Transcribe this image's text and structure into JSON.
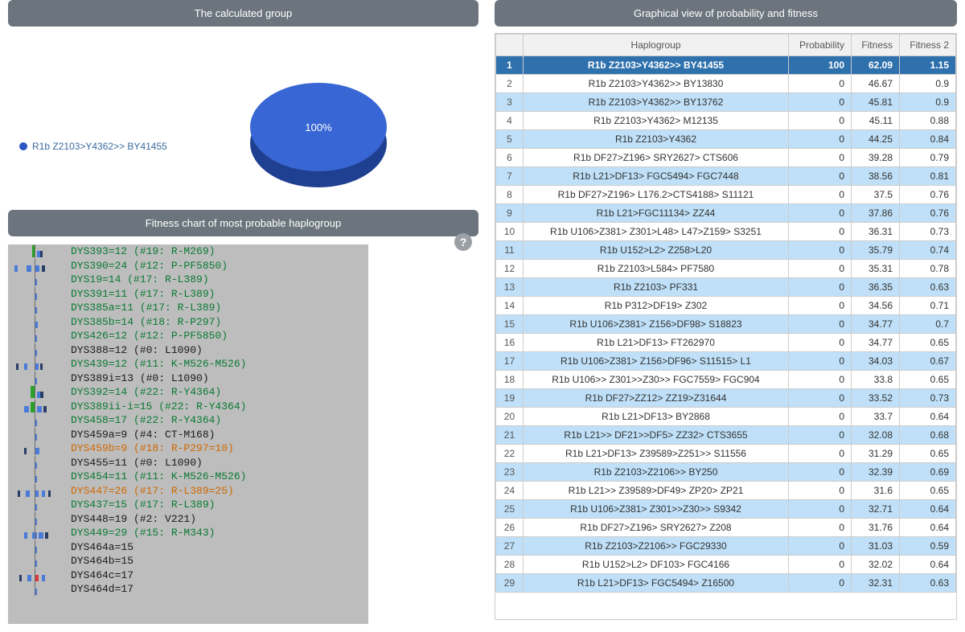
{
  "panels": {
    "calculated": "The calculated group",
    "graphical": "Graphical view of probability and fitness",
    "fitness": "Fitness chart of most probable haplogroup"
  },
  "pie": {
    "label": "100%",
    "legend": "R1b Z2103>Y4362>> BY41455",
    "fill": "#2b57c5",
    "top_fill": "#3866d4"
  },
  "help": "?",
  "table": {
    "headers": {
      "hap": "Haplogroup",
      "prob": "Probability",
      "fit": "Fitness",
      "fit2": "Fitness 2"
    },
    "rows": [
      {
        "idx": 1,
        "hap": "R1b Z2103>Y4362>> BY41455",
        "p": "100",
        "f": "62.09",
        "f2": "1.15",
        "sel": true
      },
      {
        "idx": 2,
        "hap": "R1b Z2103>Y4362>> BY13830",
        "p": "0",
        "f": "46.67",
        "f2": "0.9"
      },
      {
        "idx": 3,
        "hap": "R1b Z2103>Y4362>> BY13762",
        "p": "0",
        "f": "45.81",
        "f2": "0.9"
      },
      {
        "idx": 4,
        "hap": "R1b Z2103>Y4362> M12135",
        "p": "0",
        "f": "45.11",
        "f2": "0.88"
      },
      {
        "idx": 5,
        "hap": "R1b Z2103>Y4362",
        "p": "0",
        "f": "44.25",
        "f2": "0.84"
      },
      {
        "idx": 6,
        "hap": "R1b DF27>Z196> SRY2627> CTS606",
        "p": "0",
        "f": "39.28",
        "f2": "0.79"
      },
      {
        "idx": 7,
        "hap": "R1b L21>DF13> FGC5494> FGC7448",
        "p": "0",
        "f": "38.56",
        "f2": "0.81"
      },
      {
        "idx": 8,
        "hap": "R1b DF27>Z196> L176.2>CTS4188> S11121",
        "p": "0",
        "f": "37.5",
        "f2": "0.76"
      },
      {
        "idx": 9,
        "hap": "R1b L21>FGC11134> ZZ44",
        "p": "0",
        "f": "37.86",
        "f2": "0.76"
      },
      {
        "idx": 10,
        "hap": "R1b U106>Z381> Z301>L48> L47>Z159> S3251",
        "p": "0",
        "f": "36.31",
        "f2": "0.73"
      },
      {
        "idx": 11,
        "hap": "R1b U152>L2> Z258>L20",
        "p": "0",
        "f": "35.79",
        "f2": "0.74"
      },
      {
        "idx": 12,
        "hap": "R1b Z2103>L584> PF7580",
        "p": "0",
        "f": "35.31",
        "f2": "0.78"
      },
      {
        "idx": 13,
        "hap": "R1b Z2103> PF331",
        "p": "0",
        "f": "36.35",
        "f2": "0.63"
      },
      {
        "idx": 14,
        "hap": "R1b P312>DF19> Z302",
        "p": "0",
        "f": "34.56",
        "f2": "0.71"
      },
      {
        "idx": 15,
        "hap": "R1b U106>Z381> Z156>DF98> S18823",
        "p": "0",
        "f": "34.77",
        "f2": "0.7"
      },
      {
        "idx": 16,
        "hap": "R1b L21>DF13> FT262970",
        "p": "0",
        "f": "34.77",
        "f2": "0.65"
      },
      {
        "idx": 17,
        "hap": "R1b U106>Z381> Z156>DF96> S11515> L1",
        "p": "0",
        "f": "34.03",
        "f2": "0.67"
      },
      {
        "idx": 18,
        "hap": "R1b U106>> Z301>>Z30>> FGC7559> FGC904",
        "p": "0",
        "f": "33.8",
        "f2": "0.65"
      },
      {
        "idx": 19,
        "hap": "R1b DF27>ZZ12> ZZ19>Z31644",
        "p": "0",
        "f": "33.52",
        "f2": "0.73"
      },
      {
        "idx": 20,
        "hap": "R1b L21>DF13> BY2868",
        "p": "0",
        "f": "33.7",
        "f2": "0.64"
      },
      {
        "idx": 21,
        "hap": "R1b L21>> DF21>>DF5> ZZ32> CTS3655",
        "p": "0",
        "f": "32.08",
        "f2": "0.68"
      },
      {
        "idx": 22,
        "hap": "R1b L21>DF13> Z39589>Z251>> S11556",
        "p": "0",
        "f": "31.29",
        "f2": "0.65"
      },
      {
        "idx": 23,
        "hap": "R1b Z2103>Z2106>> BY250",
        "p": "0",
        "f": "32.39",
        "f2": "0.69"
      },
      {
        "idx": 24,
        "hap": "R1b L21>> Z39589>DF49> ZP20> ZP21",
        "p": "0",
        "f": "31.6",
        "f2": "0.65"
      },
      {
        "idx": 25,
        "hap": "R1b U106>Z381> Z301>>Z30>> S9342",
        "p": "0",
        "f": "32.71",
        "f2": "0.64"
      },
      {
        "idx": 26,
        "hap": "R1b DF27>Z196> SRY2627> Z208",
        "p": "0",
        "f": "31.76",
        "f2": "0.64"
      },
      {
        "idx": 27,
        "hap": "R1b Z2103>Z2106>> FGC29330",
        "p": "0",
        "f": "31.03",
        "f2": "0.59"
      },
      {
        "idx": 28,
        "hap": "R1b U152>L2> DF103> FGC4166",
        "p": "0",
        "f": "32.02",
        "f2": "0.64"
      },
      {
        "idx": 29,
        "hap": "R1b L21>DF13> FGC5494> Z16500",
        "p": "0",
        "f": "32.31",
        "f2": "0.63"
      }
    ]
  },
  "fitness": {
    "colors": {
      "green": "#0a7a33",
      "black": "#1a1a1a",
      "orange": "#d06800",
      "bar_blue": "#4a7bd8",
      "bar_dark": "#2a3d66",
      "bar_green": "#2aa02a",
      "bar_red": "#d83a3a"
    },
    "rows": [
      {
        "t": "DYS393=12 (#19: R-M269)",
        "c": "g",
        "bars": [
          {
            "x": 30,
            "w": 4,
            "col": "bar_green",
            "h": 15
          },
          {
            "x": 36,
            "w": 4,
            "col": "bar_blue"
          },
          {
            "x": 40,
            "w": 3,
            "col": "bar_dark"
          }
        ]
      },
      {
        "t": "DYS390=24 (#12: P-PF5850)",
        "c": "g",
        "bars": [
          {
            "x": 8,
            "w": 4,
            "col": "bar_blue"
          },
          {
            "x": 23,
            "w": 6,
            "col": "bar_blue"
          },
          {
            "x": 33,
            "w": 6,
            "col": "bar_blue"
          },
          {
            "x": 42,
            "w": 4,
            "col": "bar_dark"
          }
        ]
      },
      {
        "t": "DYS19=14 (#17: R-L389)",
        "c": "g",
        "bars": [
          {
            "x": 33,
            "w": 3,
            "col": "bar_blue"
          }
        ]
      },
      {
        "t": "DYS391=11 (#17: R-L389)",
        "c": "g",
        "bars": [
          {
            "x": 33,
            "w": 3,
            "col": "bar_blue"
          }
        ]
      },
      {
        "t": "DYS385a=11 (#17: R-L389)",
        "c": "g",
        "bars": [
          {
            "x": 33,
            "w": 3,
            "col": "bar_blue"
          }
        ]
      },
      {
        "t": "DYS385b=14 (#18: R-P297)",
        "c": "g",
        "bars": [
          {
            "x": 33,
            "w": 4,
            "col": "bar_blue"
          }
        ]
      },
      {
        "t": "DYS426=12 (#12: P-PF5850)",
        "c": "g",
        "bars": [
          {
            "x": 33,
            "w": 3,
            "col": "bar_blue"
          }
        ]
      },
      {
        "t": "DYS388=12 (#0: L1090)",
        "c": "k",
        "bars": [
          {
            "x": 33,
            "w": 3,
            "col": "bar_blue"
          }
        ]
      },
      {
        "t": "DYS439=12 (#11: K-M526-M526)",
        "c": "g",
        "bars": [
          {
            "x": 10,
            "w": 3,
            "col": "bar_dark"
          },
          {
            "x": 20,
            "w": 4,
            "col": "bar_blue"
          },
          {
            "x": 33,
            "w": 5,
            "col": "bar_blue"
          },
          {
            "x": 40,
            "w": 3,
            "col": "bar_dark"
          }
        ]
      },
      {
        "t": "DYS389i=13 (#0: L1090)",
        "c": "k",
        "bars": [
          {
            "x": 33,
            "w": 3,
            "col": "bar_blue"
          }
        ]
      },
      {
        "t": "DYS392=14 (#22: R-Y4364)",
        "c": "g",
        "bars": [
          {
            "x": 28,
            "w": 5,
            "col": "bar_green",
            "h": 15
          },
          {
            "x": 36,
            "w": 4,
            "col": "bar_blue"
          },
          {
            "x": 40,
            "w": 4,
            "col": "bar_dark"
          }
        ]
      },
      {
        "t": "DYS389ii-i=15 (#22: R-Y4364)",
        "c": "g",
        "bars": [
          {
            "x": 20,
            "w": 6,
            "col": "bar_blue"
          },
          {
            "x": 28,
            "w": 5,
            "col": "bar_green",
            "h": 13
          },
          {
            "x": 36,
            "w": 6,
            "col": "bar_blue"
          },
          {
            "x": 44,
            "w": 4,
            "col": "bar_dark"
          }
        ]
      },
      {
        "t": "DYS458=17 (#22: R-Y4364)",
        "c": "g",
        "bars": [
          {
            "x": 33,
            "w": 3,
            "col": "bar_blue"
          }
        ]
      },
      {
        "t": "DYS459a=9 (#4: CT-M168)",
        "c": "k",
        "bars": [
          {
            "x": 33,
            "w": 3,
            "col": "bar_blue"
          }
        ]
      },
      {
        "t": "DYS459b=9 (#18: R-P297=10)",
        "c": "o",
        "bars": [
          {
            "x": 20,
            "w": 3,
            "col": "bar_dark"
          },
          {
            "x": 33,
            "w": 6,
            "col": "bar_blue"
          }
        ]
      },
      {
        "t": "DYS455=11 (#0: L1090)",
        "c": "k",
        "bars": [
          {
            "x": 33,
            "w": 3,
            "col": "bar_blue"
          }
        ]
      },
      {
        "t": "DYS454=11 (#11: K-M526-M526)",
        "c": "g",
        "bars": [
          {
            "x": 33,
            "w": 3,
            "col": "bar_blue"
          }
        ]
      },
      {
        "t": "DYS447=26 (#17: R-L389=25)",
        "c": "o",
        "bars": [
          {
            "x": 12,
            "w": 3,
            "col": "bar_dark"
          },
          {
            "x": 22,
            "w": 5,
            "col": "bar_blue"
          },
          {
            "x": 33,
            "w": 5,
            "col": "bar_blue"
          },
          {
            "x": 42,
            "w": 4,
            "col": "bar_blue"
          },
          {
            "x": 50,
            "w": 3,
            "col": "bar_dark"
          }
        ]
      },
      {
        "t": "DYS437=15 (#17: R-L389)",
        "c": "g",
        "bars": [
          {
            "x": 33,
            "w": 3,
            "col": "bar_blue"
          }
        ]
      },
      {
        "t": "DYS448=19 (#2: V221)",
        "c": "k",
        "bars": [
          {
            "x": 33,
            "w": 3,
            "col": "bar_blue"
          }
        ]
      },
      {
        "t": "DYS449=29 (#15: R-M343)",
        "c": "g",
        "bars": [
          {
            "x": 20,
            "w": 4,
            "col": "bar_blue"
          },
          {
            "x": 30,
            "w": 6,
            "col": "bar_blue"
          },
          {
            "x": 38,
            "w": 6,
            "col": "bar_blue"
          },
          {
            "x": 46,
            "w": 4,
            "col": "bar_dark"
          }
        ]
      },
      {
        "t": "DYS464a=15",
        "c": "k",
        "bars": [
          {
            "x": 33,
            "w": 3,
            "col": "bar_blue"
          }
        ]
      },
      {
        "t": "DYS464b=15",
        "c": "k",
        "bars": [
          {
            "x": 33,
            "w": 3,
            "col": "bar_blue"
          }
        ]
      },
      {
        "t": "DYS464c=17",
        "c": "k",
        "bars": [
          {
            "x": 14,
            "w": 3,
            "col": "bar_dark"
          },
          {
            "x": 24,
            "w": 5,
            "col": "bar_blue"
          },
          {
            "x": 33,
            "w": 5,
            "col": "bar_red"
          },
          {
            "x": 42,
            "w": 4,
            "col": "bar_blue"
          }
        ]
      },
      {
        "t": "DYS464d=17",
        "c": "k",
        "bars": [
          {
            "x": 33,
            "w": 3,
            "col": "bar_blue"
          }
        ]
      }
    ]
  }
}
